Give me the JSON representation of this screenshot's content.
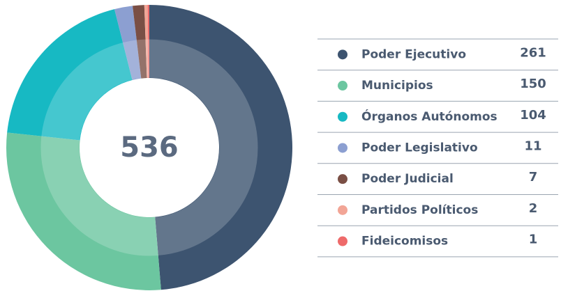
{
  "chart_data": {
    "type": "donut",
    "total": 536,
    "categories": [
      "Poder Ejecutivo",
      "Municipios",
      "Órganos Autónomos",
      "Poder Legislativo",
      "Poder Judicial",
      "Partidos Políticos",
      "Fideicomisos"
    ],
    "values": [
      261,
      150,
      104,
      11,
      7,
      2,
      1
    ],
    "colors": [
      "#3d5470",
      "#6cc6a0",
      "#17b9c3",
      "#8c9fd1",
      "#7a4f45",
      "#f2a596",
      "#ee6a6a"
    ]
  }
}
